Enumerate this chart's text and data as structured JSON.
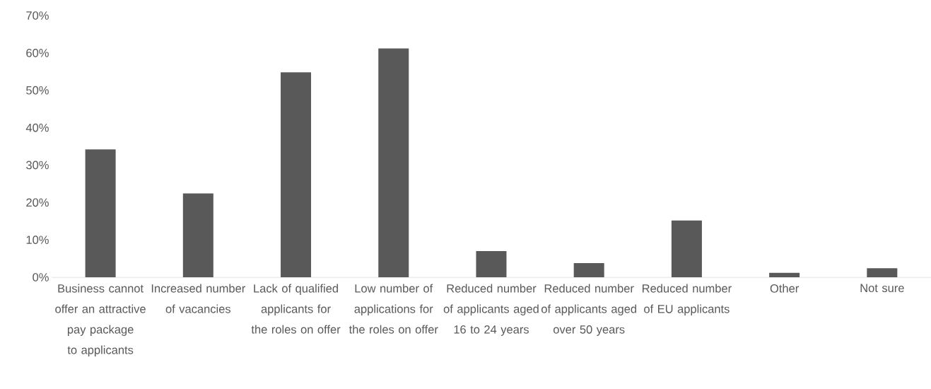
{
  "chart_data": {
    "type": "bar",
    "categories": [
      "Business cannot offer an attractive pay package to applicants",
      "Increased number of vacancies",
      "Lack of qualified applicants for the roles on offer",
      "Low number of applications for the roles on offer",
      "Reduced number of applicants aged 16 to 24 years",
      "Reduced number of applicants aged over 50 years",
      "Reduced number of EU applicants",
      "Other",
      "Not sure"
    ],
    "values": [
      34.2,
      22.4,
      54.8,
      61.2,
      7.0,
      3.8,
      15.2,
      1.2,
      2.4
    ],
    "color": "#595959",
    "ylim": [
      0,
      70
    ],
    "yticks": [
      {
        "value": 0,
        "label": "0%"
      },
      {
        "value": 10,
        "label": "10%"
      },
      {
        "value": 20,
        "label": "20%"
      },
      {
        "value": 30,
        "label": "30%"
      },
      {
        "value": 40,
        "label": "40%"
      },
      {
        "value": 50,
        "label": "50%"
      },
      {
        "value": 60,
        "label": "60%"
      },
      {
        "value": 70,
        "label": "70%"
      }
    ]
  }
}
